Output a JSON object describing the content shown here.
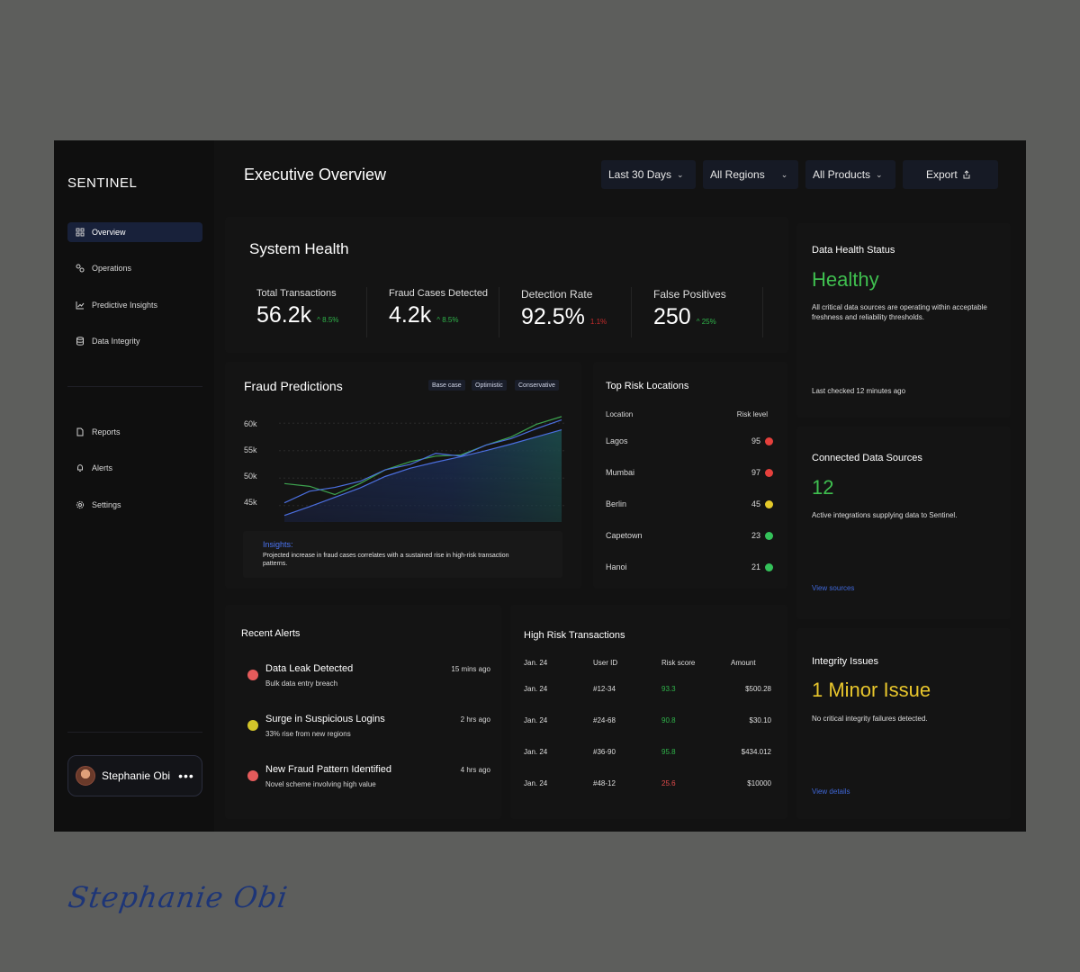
{
  "app": {
    "logo": "SENTINEL",
    "title": "Executive Overview"
  },
  "sidebar": {
    "items": [
      {
        "label": "Overview",
        "icon": "grid-icon",
        "active": true
      },
      {
        "label": "Operations",
        "icon": "operations-icon"
      },
      {
        "label": "Predictive Insights",
        "icon": "chart-icon"
      },
      {
        "label": "Data Integrity",
        "icon": "database-icon"
      }
    ],
    "secondary": [
      {
        "label": "Reports",
        "icon": "document-icon"
      },
      {
        "label": "Alerts",
        "icon": "bell-icon"
      },
      {
        "label": "Settings",
        "icon": "gear-icon"
      }
    ],
    "user": {
      "name": "Stephanie Obi",
      "menu": "•••"
    }
  },
  "filters": {
    "period": "Last 30 Days",
    "regions": "All Regions",
    "products": "All Products",
    "export": "Export"
  },
  "system_health": {
    "title": "System Health",
    "kpis": [
      {
        "label": "Total Transactions",
        "value": "56.2k",
        "delta": "8.5%",
        "direction": "up",
        "color": "#2fb34a"
      },
      {
        "label": "Fraud Cases Detected",
        "value": "4.2k",
        "delta": "8.5%",
        "direction": "up",
        "color": "#2fb34a"
      },
      {
        "label": "Detection Rate",
        "value": "92.5%",
        "delta": "1.1%",
        "direction": "down",
        "color": "#c62b2b"
      },
      {
        "label": "False Positives",
        "value": "250",
        "delta": "25%",
        "direction": "up",
        "color": "#2fb34a"
      }
    ]
  },
  "fraud_predictions": {
    "title": "Fraud Predictions",
    "legend": [
      "Base case",
      "Optimistic",
      "Conservative"
    ],
    "insight_title": "Insights:",
    "insight_text": "Projected increase in fraud cases correlates with a sustained rise in high-risk transaction patterns."
  },
  "chart_data": {
    "type": "line",
    "title": "Fraud Predictions",
    "x": [
      0,
      1,
      2,
      3,
      4,
      5,
      6,
      7,
      8,
      9,
      10,
      11
    ],
    "ylim": [
      42000,
      62000
    ],
    "yticks": [
      "60k",
      "55k",
      "50k",
      "45k"
    ],
    "ytick_values": [
      60000,
      55000,
      50000,
      45000
    ],
    "series": [
      {
        "name": "Base case",
        "values": [
          43200,
          44800,
          46500,
          48200,
          50300,
          51800,
          52900,
          53900,
          55000,
          56200,
          57500,
          58800
        ],
        "color": "#4b6fe0"
      },
      {
        "name": "Optimistic",
        "values": [
          49000,
          48500,
          47000,
          49000,
          51500,
          53000,
          54000,
          54200,
          56000,
          57500,
          59800,
          61200
        ],
        "color": "#3da34f"
      },
      {
        "name": "Conservative",
        "values": [
          45500,
          47600,
          48300,
          49400,
          51500,
          52500,
          54500,
          54000,
          56000,
          57200,
          59000,
          60600
        ],
        "color": "#4b6fe0"
      }
    ],
    "grid": true
  },
  "top_risk": {
    "title": "Top Risk Locations",
    "col_location": "Location",
    "col_risk": "Risk level",
    "rows": [
      {
        "location": "Lagos",
        "score": "95",
        "color": "#e5403c"
      },
      {
        "location": "Mumbai",
        "score": "97",
        "color": "#e5403c"
      },
      {
        "location": "Berlin",
        "score": "45",
        "color": "#e4c92a"
      },
      {
        "location": "Capetown",
        "score": "23",
        "color": "#34c25a"
      },
      {
        "location": "Hanoi",
        "score": "21",
        "color": "#34c25a"
      }
    ]
  },
  "recent_alerts": {
    "title": "Recent Alerts",
    "items": [
      {
        "title": "Data Leak Detected",
        "sub": "Bulk data entry breach",
        "time": "15 mins ago",
        "color": "#e55b5b"
      },
      {
        "title": "Surge in Suspicious Logins",
        "sub": "33% rise from new regions",
        "time": "2 hrs ago",
        "color": "#d3c52a"
      },
      {
        "title": "New Fraud Pattern Identified",
        "sub": "Novel scheme involving high value",
        "time": "4 hrs ago",
        "color": "#e55b5b"
      }
    ]
  },
  "high_risk": {
    "title": "High Risk Transactions",
    "headers": [
      "Jan. 24",
      "User ID",
      "Risk score",
      "Amount"
    ],
    "rows": [
      {
        "date": "Jan. 24",
        "user": "#12-34",
        "score": "93.3",
        "amount": "$500.28",
        "color": "#2fb34a"
      },
      {
        "date": "Jan. 24",
        "user": "#24-68",
        "score": "90.8",
        "amount": "$30.10",
        "color": "#2fb34a"
      },
      {
        "date": "Jan. 24",
        "user": "#36-90",
        "score": "95.8",
        "amount": "$434.012",
        "color": "#2fb34a"
      },
      {
        "date": "Jan. 24",
        "user": "#48-12",
        "score": "25.6",
        "amount": "$10000",
        "color": "#e14b4b"
      }
    ]
  },
  "data_health": {
    "title": "Data Health Status",
    "status": "Healthy",
    "text": "All critical data sources are operating within acceptable freshness and reliability thresholds.",
    "last_checked": "Last checked 12 minutes ago"
  },
  "connected_sources": {
    "title": "Connected Data Sources",
    "count": "12",
    "text": "Active integrations supplying data to Sentinel.",
    "link": "View sources"
  },
  "integrity": {
    "title": "Integrity Issues",
    "status": "1 Minor Issue",
    "text": "No critical integrity failures detected.",
    "link": "View details"
  },
  "signature": "Stephanie Obi",
  "colors": {
    "green": "#3fbf4f",
    "yellow": "#e8c62c",
    "accent": "#4b6fe0"
  }
}
